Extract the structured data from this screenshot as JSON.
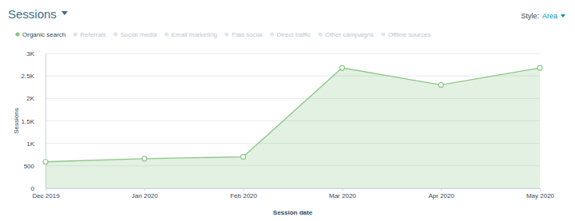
{
  "chart_data": {
    "type": "area",
    "title": "Sessions",
    "annotations": [
      "Style:",
      "Area"
    ],
    "x_label": "Session date",
    "y_label": "Sessions",
    "categories": [
      "Dec 2019",
      "Jan 2020",
      "Feb 2020",
      "Mar 2020",
      "Apr 2020",
      "May 2020"
    ],
    "series": [
      {
        "name": "Organic search",
        "color": "#8dc788",
        "values": [
          590,
          660,
          700,
          2680,
          2300,
          2680
        ]
      },
      {
        "name": "Referrals",
        "color": "#dfe6ee",
        "values": [
          null,
          null,
          null,
          null,
          null,
          null
        ]
      },
      {
        "name": "Social media",
        "color": "#dfe6ee",
        "values": [
          null,
          null,
          null,
          null,
          null,
          null
        ]
      },
      {
        "name": "Email marketing",
        "color": "#dfe6ee",
        "values": [
          null,
          null,
          null,
          null,
          null,
          null
        ]
      },
      {
        "name": "Paid social",
        "color": "#dfe6ee",
        "values": [
          null,
          null,
          null,
          null,
          null,
          null
        ]
      },
      {
        "name": "Direct traffic",
        "color": "#dfe6ee",
        "values": [
          null,
          null,
          null,
          null,
          null,
          null
        ]
      },
      {
        "name": "Other campaigns",
        "color": "#dfe6ee",
        "values": [
          null,
          null,
          null,
          null,
          null,
          null
        ]
      },
      {
        "name": "Offline sources",
        "color": "#dfe6ee",
        "values": [
          null,
          null,
          null,
          null,
          null,
          null
        ]
      }
    ],
    "ylim": [
      0,
      3000
    ],
    "yticks": [
      0,
      500,
      {
        "value": 1000,
        "label": "1K"
      },
      {
        "value": 1500,
        "label": "1.5K"
      },
      {
        "value": 2000,
        "label": "2K"
      },
      {
        "value": 2500,
        "label": "2.5K"
      },
      {
        "value": 3000,
        "label": "3K"
      }
    ],
    "grid": true
  }
}
